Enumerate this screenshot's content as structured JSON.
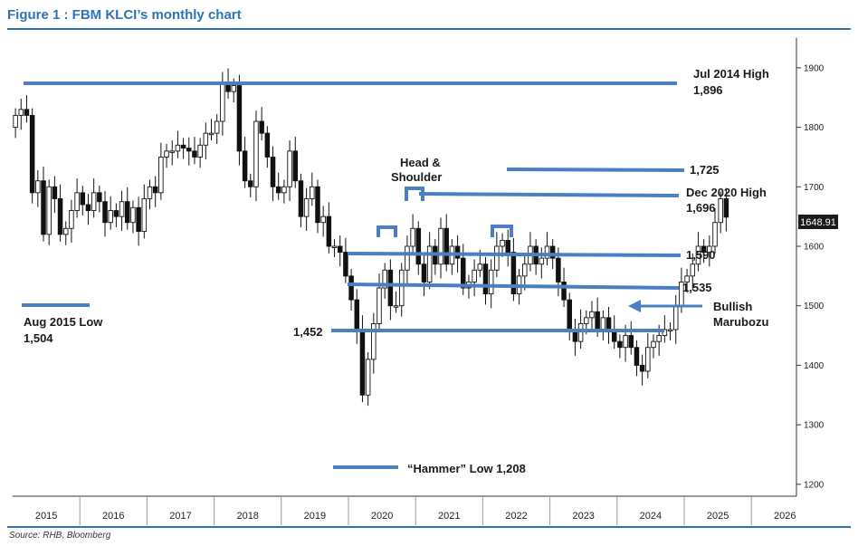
{
  "figure": {
    "title": "Figure 1 : FBM KLCI’s monthly chart",
    "source": "Source: RHB, Bloomberg"
  },
  "colors": {
    "accent": "#2e74b5",
    "level_line": "#4a7fc1",
    "candle": "#111111"
  },
  "chart_data": {
    "type": "candlestick",
    "title": "",
    "x_start_year": 2015,
    "years": [
      "2015",
      "2016",
      "2017",
      "2018",
      "2019",
      "2020",
      "2021",
      "2022",
      "2023",
      "2024",
      "2025",
      "2026"
    ],
    "ylim": [
      1180,
      1950
    ],
    "y_ticks": [
      1200,
      1300,
      1400,
      1500,
      1600,
      1700,
      1800,
      1900
    ],
    "last_price": "1648.91",
    "closes": [
      1820,
      1830,
      1820,
      1690,
      1710,
      1620,
      1700,
      1680,
      1620,
      1630,
      1660,
      1690,
      1670,
      1660,
      1690,
      1675,
      1640,
      1660,
      1650,
      1675,
      1640,
      1665,
      1625,
      1680,
      1700,
      1690,
      1750,
      1760,
      1760,
      1770,
      1765,
      1760,
      1750,
      1770,
      1790,
      1790,
      1810,
      1875,
      1860,
      1870,
      1760,
      1710,
      1700,
      1810,
      1790,
      1750,
      1700,
      1690,
      1700,
      1760,
      1710,
      1650,
      1680,
      1700,
      1640,
      1650,
      1600,
      1600,
      1590,
      1550,
      1510,
      1460,
      1350,
      1410,
      1470,
      1530,
      1560,
      1500,
      1500,
      1560,
      1600,
      1630,
      1570,
      1540,
      1600,
      1570,
      1630,
      1570,
      1600,
      1580,
      1530,
      1540,
      1560,
      1570,
      1520,
      1560,
      1600,
      1610,
      1590,
      1520,
      1550,
      1570,
      1600,
      1570,
      1580,
      1600,
      1580,
      1540,
      1510,
      1460,
      1440,
      1470,
      1480,
      1490,
      1460,
      1480,
      1460,
      1440,
      1430,
      1450,
      1430,
      1400,
      1390,
      1430,
      1440,
      1450,
      1460,
      1460,
      1500,
      1540,
      1550,
      1570,
      1600,
      1590,
      1600,
      1640,
      1680,
      1649
    ],
    "levels": [
      {
        "value": 1896,
        "label": "Jul 2014 High",
        "value_label": "1,896"
      },
      {
        "value": 1725,
        "label": "",
        "value_label": "1,725"
      },
      {
        "value": 1696,
        "label": "Dec 2020 High",
        "value_label": "1,696"
      },
      {
        "value": 1590,
        "label": "",
        "value_label": "1,590"
      },
      {
        "value": 1535,
        "label": "",
        "value_label": "1,535"
      },
      {
        "value": 1452,
        "label": "",
        "value_label": "1,452"
      },
      {
        "value": 1504,
        "label": "Aug 2015 Low",
        "value_label": "1,504"
      },
      {
        "value": 1208,
        "label": "“Hammer” Low",
        "value_label": "1,208"
      }
    ],
    "annotations": {
      "head_shoulder": [
        "Head &",
        "Shoulder"
      ],
      "bullish": [
        "Bullish",
        "Marubozu"
      ]
    }
  }
}
